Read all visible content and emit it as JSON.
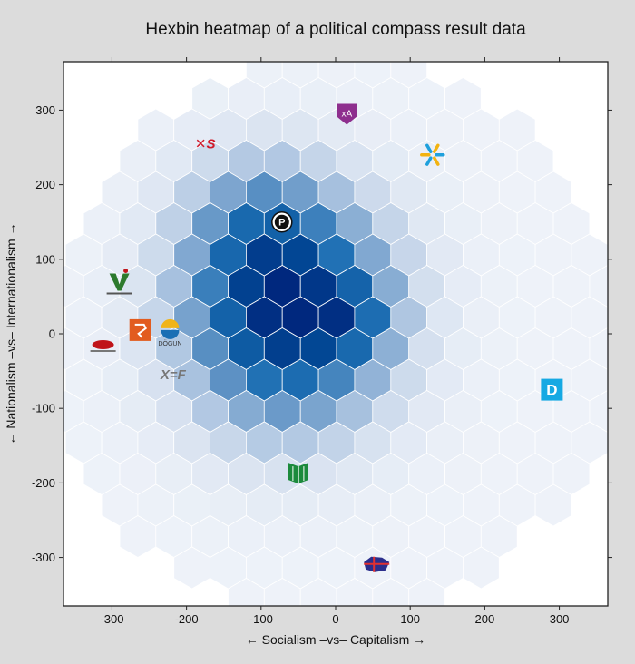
{
  "chart_data": {
    "type": "heatmap",
    "title": "Hexbin heatmap of a political compass result data",
    "xlabel": "← Socialism –vs– Capitalism →",
    "ylabel": "← Nationalism –vs– Internationalism →",
    "xlim": [
      -365,
      365
    ],
    "ylim": [
      -365,
      365
    ],
    "xticks": [
      -300,
      -200,
      -100,
      0,
      100,
      200,
      300
    ],
    "yticks": [
      -300,
      -200,
      -100,
      0,
      100,
      200,
      300
    ],
    "grid": false,
    "colormap": [
      "#f6f8fc",
      "#d5e0ef",
      "#a0bcdc",
      "#5e92c4",
      "#1f70b4",
      "#034e99",
      "#00287e"
    ],
    "max_density": 1.0,
    "density_clusters": [
      {
        "x": -65,
        "y": 30,
        "sx": 90,
        "sy": 100,
        "w": 1.0
      },
      {
        "x": 25,
        "y": 20,
        "sx": 35,
        "sy": 35,
        "w": 0.25
      },
      {
        "x": -110,
        "y": 150,
        "sx": 60,
        "sy": 60,
        "w": 0.25
      }
    ],
    "markers": [
      {
        "name": "xA",
        "x": 15,
        "y": 295,
        "shape": "shield",
        "color": "#8e2f8e"
      },
      {
        "name": "XS",
        "x": -175,
        "y": 255,
        "shape": "text",
        "label": "✕S",
        "color": "#d11a2a"
      },
      {
        "name": "star",
        "x": 130,
        "y": 240,
        "shape": "star",
        "color": "#1fa0dc"
      },
      {
        "name": "P",
        "x": -72,
        "y": 150,
        "shape": "circle",
        "label": "P",
        "color": "#111111"
      },
      {
        "name": "V",
        "x": -290,
        "y": 70,
        "shape": "v-logo",
        "color": "#2d7a2d"
      },
      {
        "name": "orange",
        "x": -262,
        "y": 5,
        "shape": "square",
        "color": "#e25c1f"
      },
      {
        "name": "dogun",
        "x": -222,
        "y": 5,
        "shape": "dogun",
        "label": "DÖGUN",
        "color": "#1a6fb4"
      },
      {
        "name": "red",
        "x": -312,
        "y": -17,
        "shape": "red",
        "color": "#c0141a"
      },
      {
        "name": "XF",
        "x": -218,
        "y": -55,
        "shape": "text",
        "label": "X=F",
        "color": "#777777"
      },
      {
        "name": "D",
        "x": 290,
        "y": -75,
        "shape": "dbox",
        "label": "D",
        "color": "#16a9e3"
      },
      {
        "name": "book",
        "x": -50,
        "y": -185,
        "shape": "book",
        "color": "#1c8a3c"
      },
      {
        "name": "iceland",
        "x": 55,
        "y": -310,
        "shape": "iceland",
        "color": "#2b2e8c"
      }
    ]
  }
}
